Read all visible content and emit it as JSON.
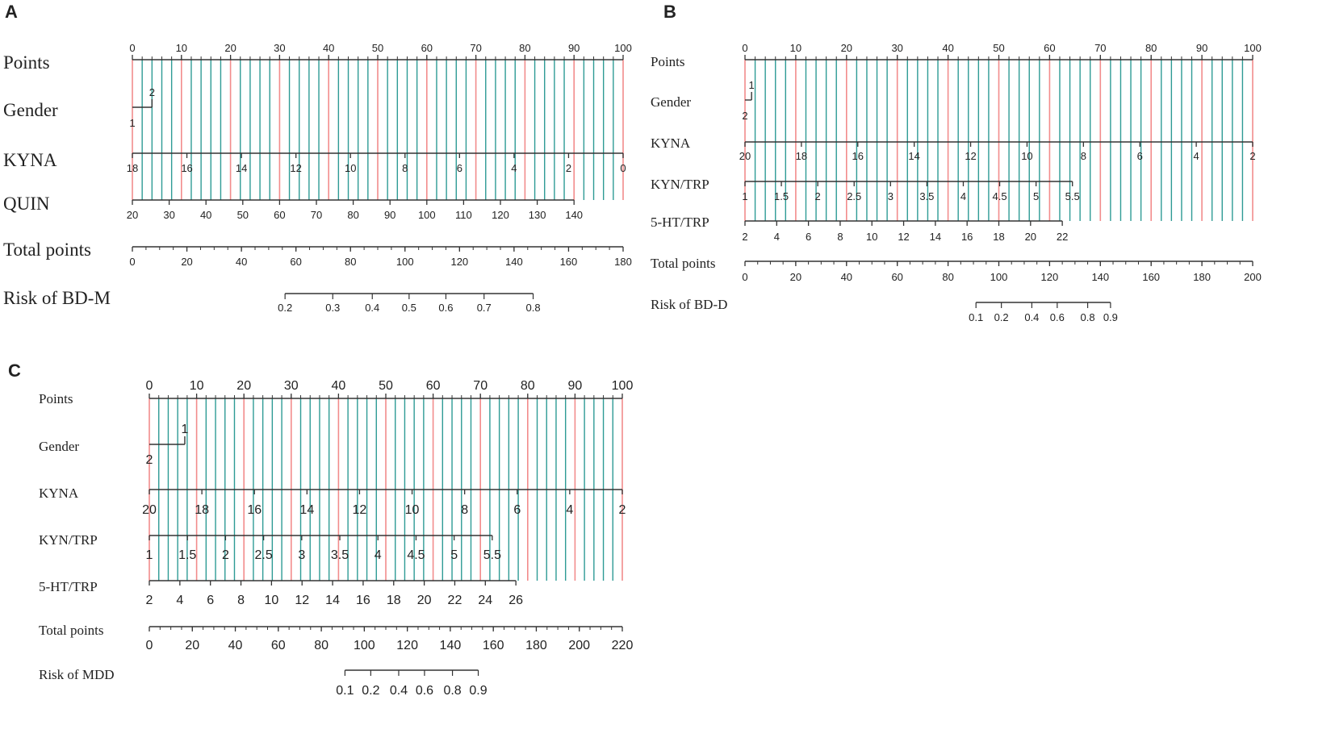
{
  "colors": {
    "axis": "#333333",
    "grid_main": "#f28c8c",
    "grid_minor": "#2e9b95",
    "background": "#ffffff"
  },
  "chart_data": [
    {
      "type": "nomogram",
      "panel_label": "A",
      "grid": true,
      "rows": [
        {
          "label": "Points",
          "scale": [
            0,
            100
          ],
          "ticks": [
            0,
            10,
            20,
            30,
            40,
            50,
            60,
            70,
            80,
            90,
            100
          ],
          "minor_step": 2
        },
        {
          "label": "Gender",
          "categories": [
            {
              "name": "1",
              "points": 0
            },
            {
              "name": "2",
              "points": 4
            }
          ]
        },
        {
          "label": "KYNA",
          "scale": [
            18,
            0
          ],
          "ticks": [
            18,
            16,
            14,
            12,
            10,
            8,
            6,
            4,
            2,
            0
          ],
          "points_range": [
            0,
            100
          ]
        },
        {
          "label": "QUIN",
          "scale": [
            20,
            140
          ],
          "ticks": [
            20,
            30,
            40,
            50,
            60,
            70,
            80,
            90,
            100,
            110,
            120,
            130,
            140
          ],
          "points_range": [
            0,
            90
          ]
        },
        {
          "label": "Total points",
          "scale": [
            0,
            180
          ],
          "ticks": [
            0,
            20,
            40,
            60,
            80,
            100,
            120,
            140,
            160,
            180
          ],
          "minor_step": 5
        },
        {
          "label": "Risk of BD-M",
          "ticks": [
            0.2,
            0.3,
            0.4,
            0.5,
            0.6,
            0.7,
            0.8
          ],
          "tick_total_points": [
            56,
            73.5,
            88,
            101.5,
            115,
            129,
            147
          ]
        }
      ]
    },
    {
      "type": "nomogram",
      "panel_label": "B",
      "grid": true,
      "rows": [
        {
          "label": "Points",
          "scale": [
            0,
            100
          ],
          "ticks": [
            0,
            10,
            20,
            30,
            40,
            50,
            60,
            70,
            80,
            90,
            100
          ],
          "minor_step": 2
        },
        {
          "label": "Gender",
          "categories": [
            {
              "name": "1",
              "points": 1.3
            },
            {
              "name": "2",
              "points": 0
            }
          ]
        },
        {
          "label": "KYNA",
          "scale": [
            20,
            2
          ],
          "ticks": [
            20,
            18,
            16,
            14,
            12,
            10,
            8,
            6,
            4,
            2
          ],
          "points_range": [
            0,
            100
          ]
        },
        {
          "label": "KYN/TRP",
          "scale": [
            1,
            5.5
          ],
          "ticks": [
            1,
            1.5,
            2,
            2.5,
            3,
            3.5,
            4,
            4.5,
            5,
            5.5
          ],
          "points_range": [
            0,
            64.5
          ]
        },
        {
          "label": "5-HT/TRP",
          "scale": [
            2,
            22
          ],
          "ticks": [
            2,
            4,
            6,
            8,
            10,
            12,
            14,
            16,
            18,
            20,
            22
          ],
          "points_range": [
            0,
            62.5
          ]
        },
        {
          "label": "Total points",
          "scale": [
            0,
            200
          ],
          "ticks": [
            0,
            20,
            40,
            60,
            80,
            100,
            120,
            140,
            160,
            180,
            200
          ],
          "minor_step": 5
        },
        {
          "label": "Risk of BD-D",
          "ticks": [
            0.1,
            0.2,
            0.4,
            0.6,
            0.8,
            0.9
          ],
          "tick_total_points": [
            91,
            101,
            113,
            123,
            135,
            144
          ]
        }
      ]
    },
    {
      "type": "nomogram",
      "panel_label": "C",
      "grid": true,
      "rows": [
        {
          "label": "Points",
          "scale": [
            0,
            100
          ],
          "ticks": [
            0,
            10,
            20,
            30,
            40,
            50,
            60,
            70,
            80,
            90,
            100
          ],
          "minor_step": 2
        },
        {
          "label": "Gender",
          "categories": [
            {
              "name": "1",
              "points": 7.5
            },
            {
              "name": "2",
              "points": 0
            }
          ]
        },
        {
          "label": "KYNA",
          "scale": [
            20,
            2
          ],
          "ticks": [
            20,
            18,
            16,
            14,
            12,
            10,
            8,
            6,
            4,
            2
          ],
          "points_range": [
            0,
            100
          ]
        },
        {
          "label": "KYN/TRP",
          "scale": [
            1,
            5.5
          ],
          "ticks": [
            1,
            1.5,
            2,
            2.5,
            3,
            3.5,
            4,
            4.5,
            5,
            5.5
          ],
          "points_range": [
            0,
            72.5
          ]
        },
        {
          "label": "5-HT/TRP",
          "scale": [
            2,
            26
          ],
          "ticks": [
            2,
            4,
            6,
            8,
            10,
            12,
            14,
            16,
            18,
            20,
            22,
            24,
            26
          ],
          "points_range": [
            0,
            77.5
          ]
        },
        {
          "label": "Total points",
          "scale": [
            0,
            220
          ],
          "ticks": [
            0,
            20,
            40,
            60,
            80,
            100,
            120,
            140,
            160,
            180,
            200,
            220
          ],
          "minor_step": 5
        },
        {
          "label": "Risk of MDD",
          "ticks": [
            0.1,
            0.2,
            0.4,
            0.6,
            0.8,
            0.9
          ],
          "tick_total_points": [
            91,
            103,
            116,
            128,
            141,
            153
          ]
        }
      ]
    }
  ]
}
